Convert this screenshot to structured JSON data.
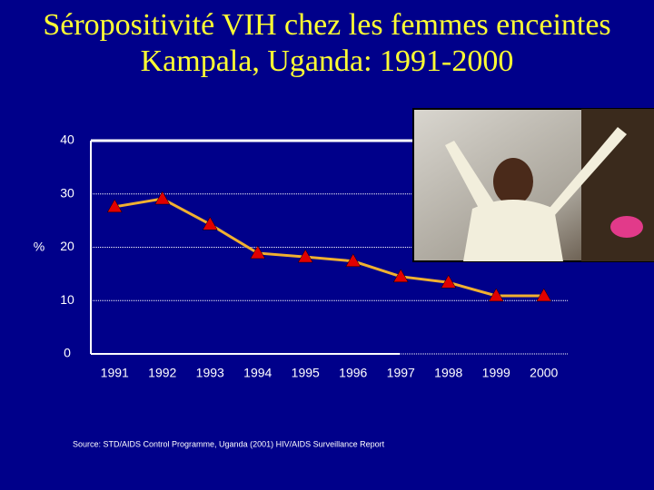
{
  "chart_data": {
    "type": "line",
    "title": "Séropositivité VIH chez les femmes enceintes Kampala, Uganda: 1991-2000",
    "ylabel": "%",
    "categories": [
      "1991",
      "1992",
      "1993",
      "1994",
      "1995",
      "1996",
      "1997",
      "1998",
      "1999",
      "2000"
    ],
    "series": [
      {
        "name": "Séropositivité VIH",
        "color": "#f0b030",
        "marker_color": "#e00000",
        "values": [
          27.6,
          29.1,
          24.3,
          18.9,
          18.2,
          17.4,
          14.5,
          13.4,
          10.9,
          10.9
        ]
      }
    ],
    "ylim": [
      0,
      40
    ],
    "yticks": [
      0,
      10,
      20,
      30,
      40
    ],
    "grid": true,
    "source": "Source:  STD/AIDS Control Programme, Uganda (2001) HIV/AIDS Surveillance Report"
  }
}
